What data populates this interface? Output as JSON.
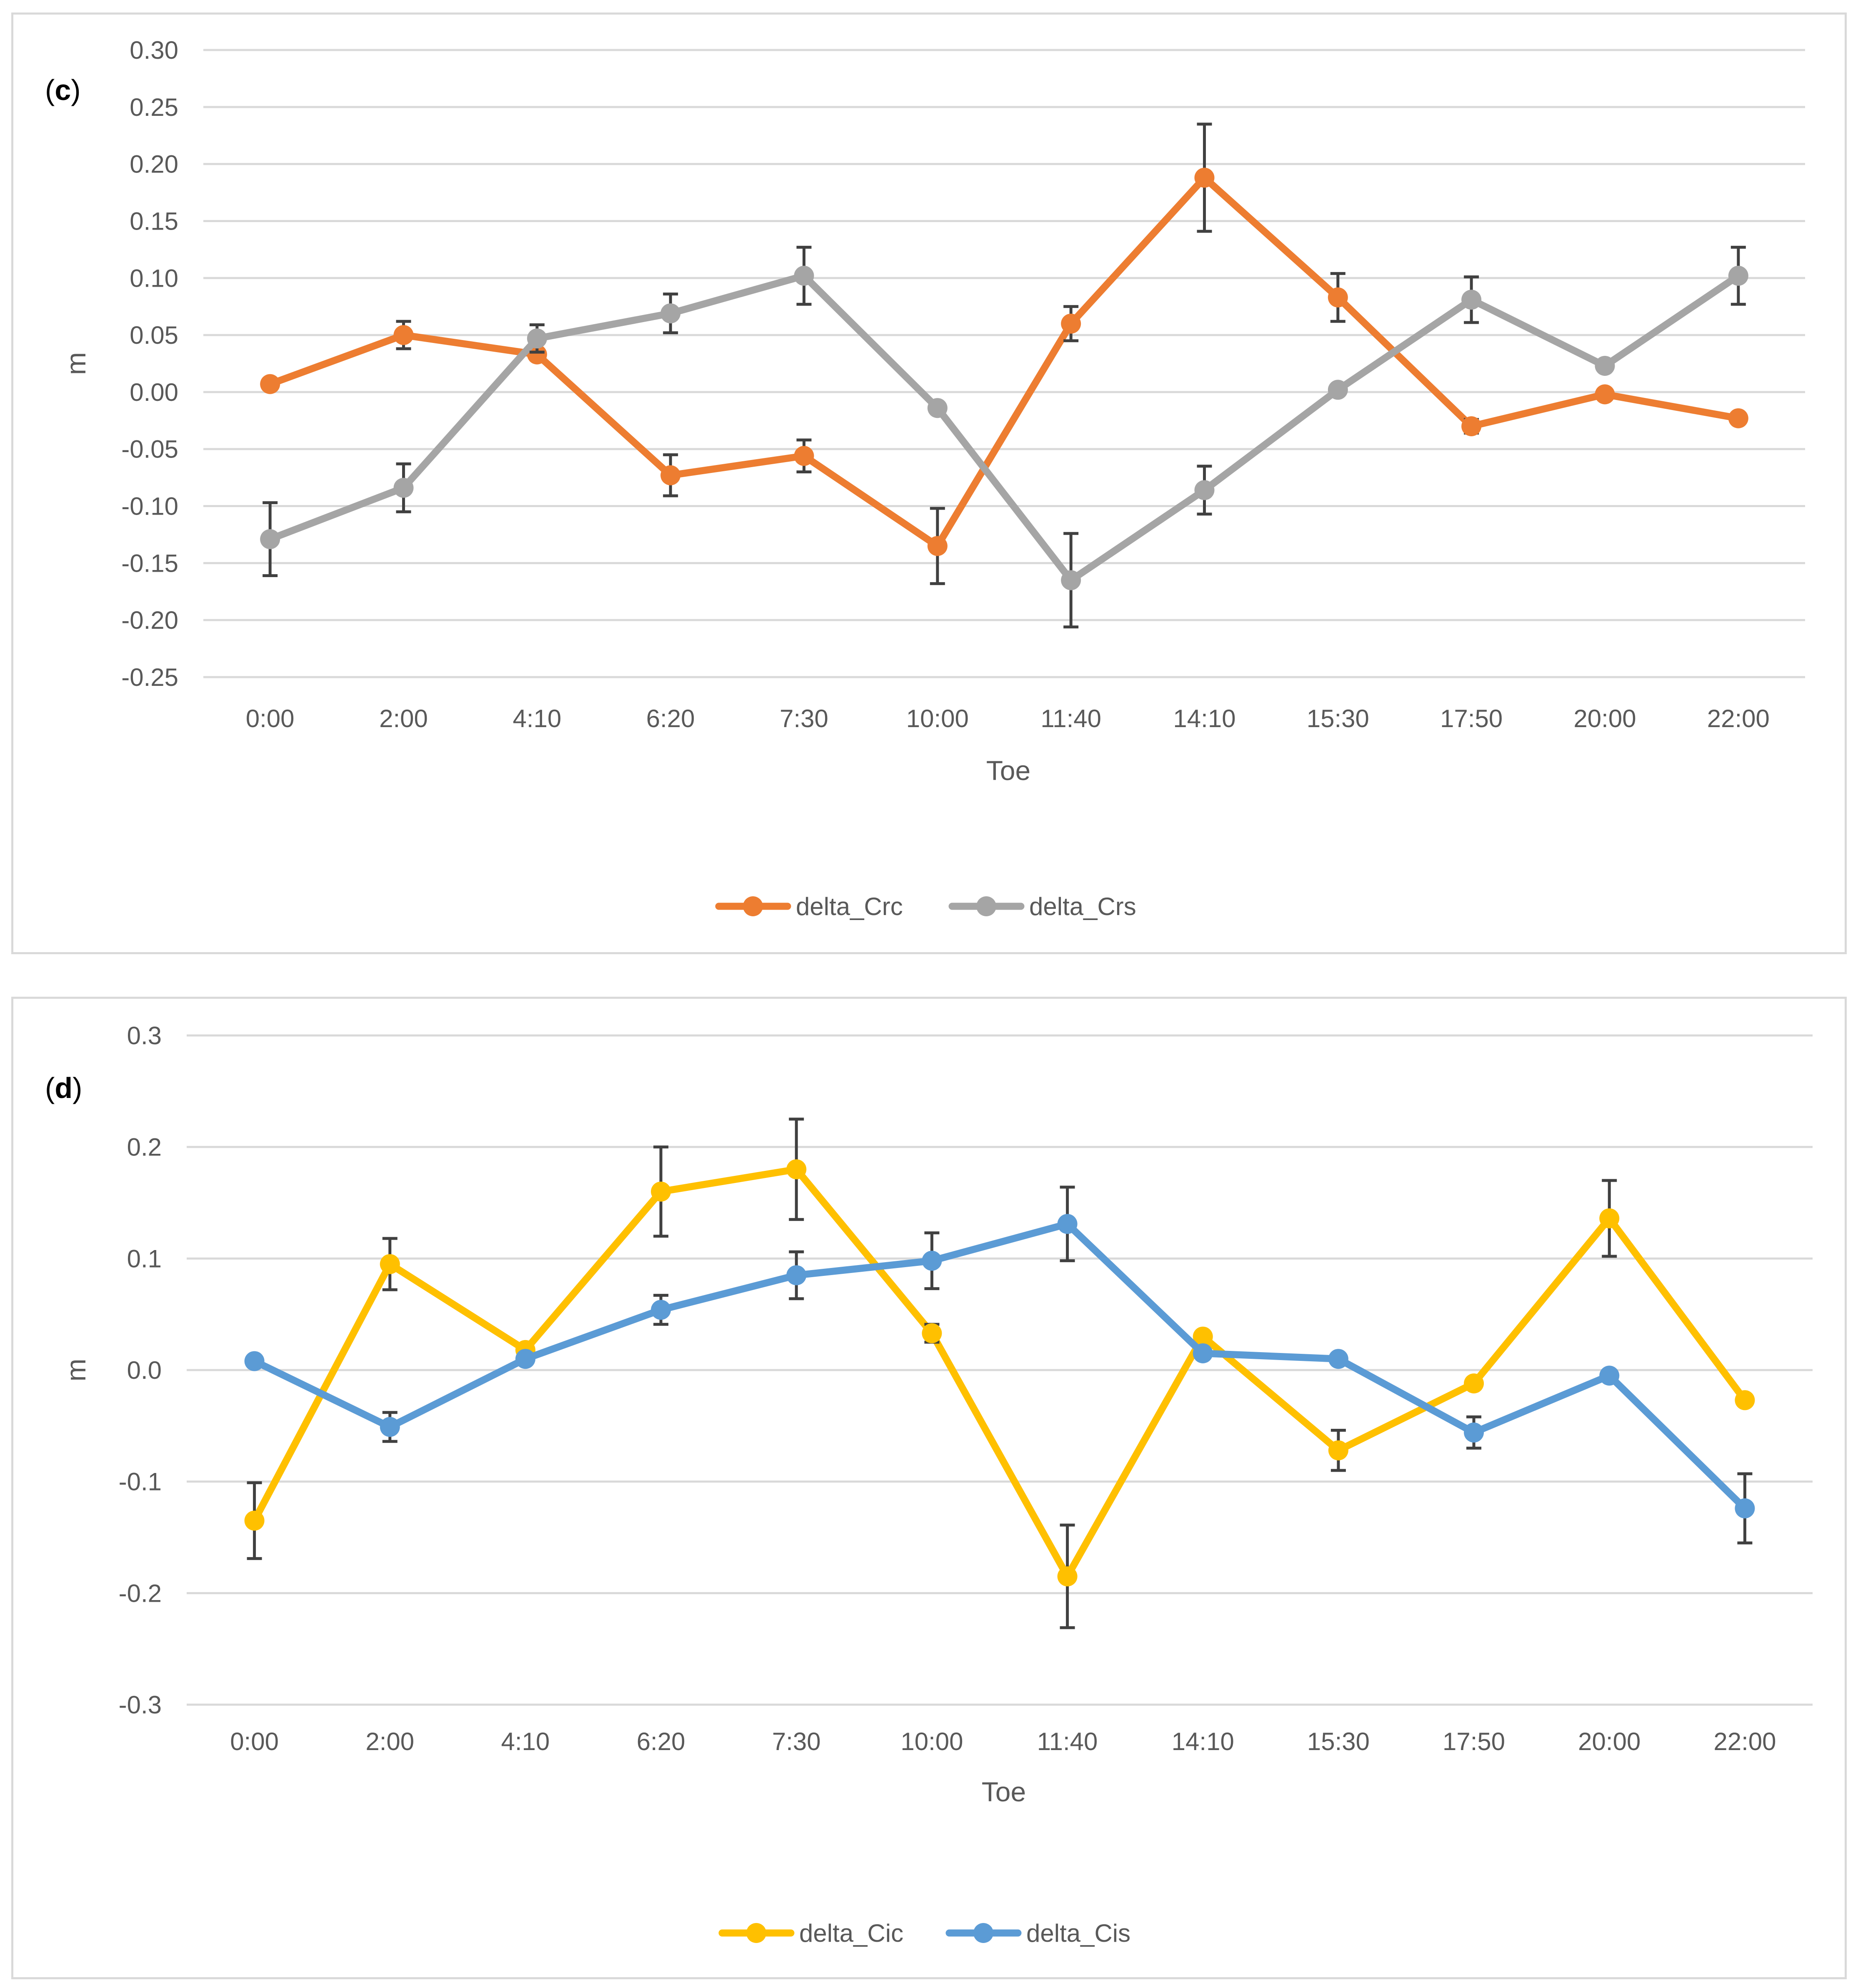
{
  "chart_data": [
    {
      "panel_label": "(c)",
      "panel_label_letter": "c",
      "type": "line",
      "categories": [
        "0:00",
        "2:00",
        "4:10",
        "6:20",
        "7:30",
        "10:00",
        "11:40",
        "14:10",
        "15:30",
        "17:50",
        "20:00",
        "22:00"
      ],
      "xlabel": "Toe",
      "ylabel": "m",
      "ylim": [
        -0.25,
        0.3
      ],
      "yticks": [
        0.3,
        0.25,
        0.2,
        0.15,
        0.1,
        0.05,
        0.0,
        -0.05,
        -0.1,
        -0.15,
        -0.2,
        -0.25
      ],
      "ytick_labels": [
        "0.30",
        "0.25",
        "0.20",
        "0.15",
        "0.10",
        "0.05",
        "0.00",
        "-0.05",
        "-0.10",
        "-0.15",
        "-0.20",
        "-0.25"
      ],
      "grid": true,
      "legend_position": "bottom-center",
      "series": [
        {
          "name": "delta_Crc",
          "color": "#ED7D31",
          "values": [
            0.007,
            0.05,
            0.033,
            -0.073,
            -0.056,
            -0.135,
            0.06,
            0.188,
            0.083,
            -0.03,
            -0.002,
            -0.023
          ],
          "errors": [
            0.0,
            0.012,
            0.0,
            0.018,
            0.014,
            0.033,
            0.015,
            0.047,
            0.021,
            0.006,
            0.0,
            0.0
          ]
        },
        {
          "name": "delta_Crs",
          "color": "#A5A5A5",
          "values": [
            -0.129,
            -0.084,
            0.047,
            0.069,
            0.102,
            -0.014,
            -0.165,
            -0.086,
            0.002,
            0.081,
            0.023,
            0.102
          ],
          "errors": [
            0.032,
            0.021,
            0.012,
            0.017,
            0.025,
            0.0,
            0.041,
            0.021,
            0.0,
            0.02,
            0.0,
            0.025
          ]
        }
      ]
    },
    {
      "panel_label": "(d)",
      "panel_label_letter": "d",
      "type": "line",
      "categories": [
        "0:00",
        "2:00",
        "4:10",
        "6:20",
        "7:30",
        "10:00",
        "11:40",
        "14:10",
        "15:30",
        "17:50",
        "20:00",
        "22:00"
      ],
      "xlabel": "Toe",
      "ylabel": "m",
      "ylim": [
        -0.3,
        0.3
      ],
      "yticks": [
        0.3,
        0.2,
        0.1,
        0.0,
        -0.1,
        -0.2,
        -0.3
      ],
      "ytick_labels": [
        "0.3",
        "0.2",
        "0.1",
        "0.0",
        "-0.1",
        "-0.2",
        "-0.3"
      ],
      "grid": true,
      "legend_position": "bottom-center",
      "series": [
        {
          "name": "delta_Cic",
          "color": "#FFC000",
          "values": [
            -0.135,
            0.095,
            0.018,
            0.16,
            0.18,
            0.033,
            -0.185,
            0.03,
            -0.072,
            -0.012,
            0.136,
            -0.027
          ],
          "errors": [
            0.034,
            0.023,
            0.0,
            0.04,
            0.045,
            0.008,
            0.046,
            0.0,
            0.018,
            0.0,
            0.034,
            0.0
          ]
        },
        {
          "name": "delta_Cis",
          "color": "#5B9BD5",
          "values": [
            0.008,
            -0.051,
            0.01,
            0.054,
            0.085,
            0.098,
            0.131,
            0.015,
            0.01,
            -0.056,
            -0.005,
            -0.124
          ],
          "errors": [
            0.0,
            0.013,
            0.0,
            0.013,
            0.021,
            0.025,
            0.033,
            0.0,
            0.0,
            0.014,
            0.0,
            0.031
          ]
        }
      ]
    }
  ]
}
